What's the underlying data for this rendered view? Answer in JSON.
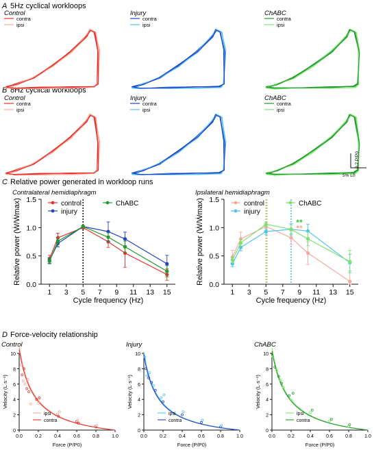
{
  "sections": {
    "a": {
      "letter": "A",
      "title": "5Hz cyclical workloops"
    },
    "b": {
      "letter": "B",
      "title": "8Hz cyclical workloops"
    },
    "c": {
      "letter": "C",
      "title": "Relative power generated in workloop runs"
    },
    "d": {
      "letter": "D",
      "title": "Force-velocity relationship"
    }
  },
  "colors": {
    "control_contra": "#e8302a",
    "control_ipsi": "#f4a99a",
    "injury_contra": "#2242c8",
    "injury_ipsi": "#4fc3ee",
    "chabc_contra": "#1f9a2c",
    "chabc_ipsi": "#7de36f"
  },
  "workloops": {
    "groups": [
      {
        "name": "Control",
        "legend": [
          "contra",
          "ipsi"
        ]
      },
      {
        "name": "Injury",
        "legend": [
          "contra",
          "ipsi"
        ]
      },
      {
        "name": "ChABC",
        "legend": [
          "contra",
          "ipsi"
        ]
      }
    ],
    "scalebar": {
      "y_label": "0.2 P/P0",
      "x_label": "5% L0"
    }
  },
  "chart_data": [
    {
      "type": "line",
      "title": "Contralateral hemidiaphragm",
      "xlabel": "Cycle frequency (Hz)",
      "ylabel": "Relative power (Ẇ/Ẇmax)",
      "x_ticks": [
        "1",
        "3",
        "5",
        "7",
        "9",
        "11",
        "13",
        "15"
      ],
      "y_ticks": [
        "0.0",
        "0.5",
        "1.0",
        "1.5"
      ],
      "xlim": [
        0,
        16
      ],
      "ylim": [
        0,
        1.5
      ],
      "x": [
        1,
        2,
        5,
        8,
        10,
        15
      ],
      "series": [
        {
          "name": "control",
          "color": "#e8302a",
          "values": [
            0.45,
            0.82,
            1.0,
            0.75,
            0.55,
            0.17
          ],
          "err": [
            0.06,
            0.08,
            0.02,
            0.1,
            0.25,
            0.1
          ]
        },
        {
          "name": "injury",
          "color": "#2242c8",
          "values": [
            0.42,
            0.72,
            1.02,
            0.93,
            0.8,
            0.36
          ],
          "err": [
            0.05,
            0.06,
            0.02,
            0.17,
            0.12,
            0.15
          ]
        },
        {
          "name": "ChABC",
          "color": "#1f9a2c",
          "values": [
            0.41,
            0.76,
            1.02,
            0.83,
            0.66,
            0.23
          ],
          "err": [
            0.05,
            0.05,
            0.02,
            0.08,
            0.1,
            0.1
          ]
        }
      ],
      "vlines": [
        {
          "x": 5,
          "color": "#111111"
        }
      ],
      "annotations": [],
      "legend_placement": "top"
    },
    {
      "type": "line",
      "title": "Ipsilateral hemidiaphragm",
      "xlabel": "Cycle frequency (Hz)",
      "ylabel": "Relative power (Ẇ/Ẇmax)",
      "x_ticks": [
        "1",
        "3",
        "5",
        "7",
        "9",
        "11",
        "13",
        "15"
      ],
      "y_ticks": [
        "0.0",
        "0.5",
        "1.0",
        "1.5"
      ],
      "xlim": [
        0,
        16
      ],
      "ylim": [
        0,
        1.5
      ],
      "x": [
        1,
        2,
        5,
        8,
        10,
        15
      ],
      "series": [
        {
          "name": "control",
          "color": "#f4a99a",
          "values": [
            0.48,
            0.8,
            1.02,
            0.82,
            0.55,
            0.05
          ],
          "err": [
            0.12,
            0.12,
            0.04,
            0.12,
            0.2,
            0.18
          ]
        },
        {
          "name": "injury",
          "color": "#4fc3ee",
          "values": [
            0.36,
            0.65,
            0.93,
            0.97,
            0.94,
            0.38
          ],
          "err": [
            0.05,
            0.06,
            0.05,
            0.1,
            0.12,
            0.15
          ]
        },
        {
          "name": "ChABC",
          "color": "#7de36f",
          "values": [
            0.43,
            0.73,
            1.06,
            0.97,
            0.8,
            0.4
          ],
          "err": [
            0.05,
            0.06,
            0.04,
            0.08,
            0.12,
            0.2
          ]
        }
      ],
      "vlines": [
        {
          "x": 5,
          "color": "#7de36f"
        },
        {
          "x": 5,
          "color": "#f4a99a"
        },
        {
          "x": 8,
          "color": "#4fc3ee"
        }
      ],
      "annotations": [
        {
          "text": "**",
          "x": 8.6,
          "y": 1.04,
          "color": "#3ac43a"
        },
        {
          "text": "**",
          "x": 8.6,
          "y": 0.94,
          "color": "#f4a99a"
        }
      ],
      "legend_placement": "top"
    },
    {
      "type": "scatter",
      "title": "Control",
      "xlabel": "Force (P/P0)",
      "ylabel": "Velocity (L·s⁻¹)",
      "x_ticks": [
        "0.0",
        "0.2",
        "0.4",
        "0.6",
        "0.8",
        "1.0"
      ],
      "y_ticks": [
        "0",
        "2",
        "4",
        "6",
        "8",
        "10"
      ],
      "xlim": [
        0,
        1
      ],
      "ylim": [
        0,
        10
      ],
      "legend": [
        {
          "name": "ipsi",
          "color": "#f4a99a"
        },
        {
          "name": "contra",
          "color": "#e8302a"
        }
      ],
      "fit": {
        "a": 10.5,
        "c": 0.16
      },
      "points": [
        {
          "x": 0.02,
          "y": 8.5
        },
        {
          "x": 0.03,
          "y": 7.2
        },
        {
          "x": 0.04,
          "y": 6.4
        },
        {
          "x": 0.05,
          "y": 8.0
        },
        {
          "x": 0.06,
          "y": 6.0
        },
        {
          "x": 0.08,
          "y": 5.4
        },
        {
          "x": 0.09,
          "y": 6.6
        },
        {
          "x": 0.1,
          "y": 5.0
        },
        {
          "x": 0.12,
          "y": 3.4
        },
        {
          "x": 0.18,
          "y": 4.0
        },
        {
          "x": 0.2,
          "y": 3.5
        },
        {
          "x": 0.21,
          "y": 4.2
        },
        {
          "x": 0.4,
          "y": 2.1
        },
        {
          "x": 0.41,
          "y": 1.8
        },
        {
          "x": 0.42,
          "y": 2.4
        },
        {
          "x": 0.6,
          "y": 1.1
        },
        {
          "x": 0.61,
          "y": 1.3
        },
        {
          "x": 0.62,
          "y": 0.9
        },
        {
          "x": 0.79,
          "y": 0.5
        },
        {
          "x": 0.8,
          "y": 0.4
        },
        {
          "x": 0.81,
          "y": 0.6
        }
      ]
    },
    {
      "type": "scatter",
      "title": "Injury",
      "xlabel": "Force (P/P0)",
      "ylabel": "Velocity (L·s⁻¹)",
      "x_ticks": [
        "0.0",
        "0.2",
        "0.4",
        "0.6",
        "0.8",
        "1.0"
      ],
      "y_ticks": [
        "0",
        "2",
        "4",
        "6",
        "8",
        "10"
      ],
      "xlim": [
        0,
        1
      ],
      "ylim": [
        0,
        10
      ],
      "legend": [
        {
          "name": "ipsi",
          "color": "#4fc3ee"
        },
        {
          "name": "contra",
          "color": "#2242c8"
        }
      ],
      "fit": {
        "a": 9.8,
        "c": 0.15
      },
      "points": [
        {
          "x": 0.01,
          "y": 9.5
        },
        {
          "x": 0.02,
          "y": 8.0
        },
        {
          "x": 0.03,
          "y": 7.1
        },
        {
          "x": 0.05,
          "y": 6.8
        },
        {
          "x": 0.06,
          "y": 7.5
        },
        {
          "x": 0.08,
          "y": 6.2
        },
        {
          "x": 0.1,
          "y": 5.8
        },
        {
          "x": 0.12,
          "y": 5.2
        },
        {
          "x": 0.18,
          "y": 4.2
        },
        {
          "x": 0.2,
          "y": 3.7
        },
        {
          "x": 0.21,
          "y": 4.6
        },
        {
          "x": 0.4,
          "y": 2.0
        },
        {
          "x": 0.41,
          "y": 2.4
        },
        {
          "x": 0.6,
          "y": 1.0
        },
        {
          "x": 0.61,
          "y": 1.3
        },
        {
          "x": 0.8,
          "y": 0.4
        },
        {
          "x": 0.81,
          "y": 0.6
        }
      ]
    },
    {
      "type": "scatter",
      "title": "ChABC",
      "xlabel": "Force (P/P0)",
      "ylabel": "Velocity (L·s⁻¹)",
      "x_ticks": [
        "0.0",
        "0.2",
        "0.4",
        "0.6",
        "0.8",
        "1.0"
      ],
      "y_ticks": [
        "0",
        "2",
        "4",
        "6",
        "8",
        "10"
      ],
      "xlim": [
        0,
        1
      ],
      "ylim": [
        0,
        10
      ],
      "legend": [
        {
          "name": "ipsi",
          "color": "#7de36f"
        },
        {
          "name": "contra",
          "color": "#1f9a2c"
        }
      ],
      "fit": {
        "a": 10.3,
        "c": 0.17
      },
      "points": [
        {
          "x": 0.01,
          "y": 9.6
        },
        {
          "x": 0.03,
          "y": 8.2
        },
        {
          "x": 0.05,
          "y": 7.8
        },
        {
          "x": 0.07,
          "y": 7.0
        },
        {
          "x": 0.09,
          "y": 6.5
        },
        {
          "x": 0.1,
          "y": 6.1
        },
        {
          "x": 0.12,
          "y": 5.6
        },
        {
          "x": 0.18,
          "y": 4.5
        },
        {
          "x": 0.2,
          "y": 3.9
        },
        {
          "x": 0.22,
          "y": 4.8
        },
        {
          "x": 0.4,
          "y": 2.3
        },
        {
          "x": 0.42,
          "y": 2.6
        },
        {
          "x": 0.6,
          "y": 1.2
        },
        {
          "x": 0.62,
          "y": 1.4
        },
        {
          "x": 0.8,
          "y": 0.5
        },
        {
          "x": 0.81,
          "y": 0.7
        }
      ]
    }
  ]
}
